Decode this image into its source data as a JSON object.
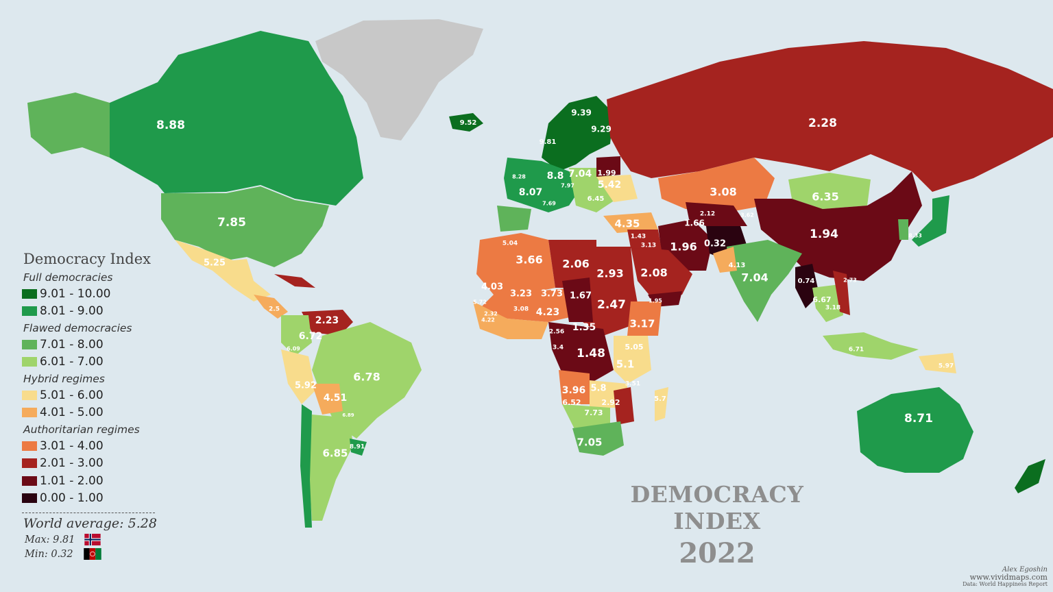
{
  "map": {
    "title_line1": "DEMOCRACY INDEX",
    "title_line2": "2022"
  },
  "legend": {
    "title": "Democracy Index",
    "groups": [
      {
        "name": "Full democracies",
        "bins": [
          {
            "range": "9.01 - 10.00",
            "color": "#0b6e1f"
          },
          {
            "range": "8.01 - 9.00",
            "color": "#1f9a4b"
          }
        ]
      },
      {
        "name": "Flawed democracies",
        "bins": [
          {
            "range": "7.01 - 8.00",
            "color": "#5fb35a"
          },
          {
            "range": "6.01 - 7.00",
            "color": "#9fd46b"
          }
        ]
      },
      {
        "name": "Hybrid regimes",
        "bins": [
          {
            "range": "5.01 - 6.00",
            "color": "#f8dc8c"
          },
          {
            "range": "4.01 - 5.00",
            "color": "#f5ab5c"
          }
        ]
      },
      {
        "name": "Authoritarian regimes",
        "bins": [
          {
            "range": "3.01 - 4.00",
            "color": "#ec7a43"
          },
          {
            "range": "2.01 - 3.00",
            "color": "#a5231f"
          },
          {
            "range": "1.01 - 2.00",
            "color": "#6b0a16"
          },
          {
            "range": "0.00 - 1.00",
            "color": "#2a0310"
          }
        ]
      }
    ],
    "divider": "----------------------------------",
    "world_average": "World average: 5.28",
    "max_label": "Max: 9.81",
    "min_label": "Min: 0.32",
    "max_flag_icon": "norway-flag-icon",
    "min_flag_icon": "afghanistan-flag-icon"
  },
  "credits": {
    "author": "Alex Egoshin",
    "site": "www.vividmaps.com",
    "source": "Data: World Happiness Report"
  },
  "country_labels": [
    {
      "text": "2.28"
    },
    {
      "text": "8.88"
    },
    {
      "text": "7.85"
    },
    {
      "text": "9.52"
    },
    {
      "text": "9.39"
    },
    {
      "text": "9.29"
    },
    {
      "text": "9.81"
    },
    {
      "text": "8.8"
    },
    {
      "text": "8.07"
    },
    {
      "text": "7.04"
    },
    {
      "text": "5.42"
    },
    {
      "text": "1.99"
    },
    {
      "text": "3.08"
    },
    {
      "text": "6.35"
    },
    {
      "text": "4.35"
    },
    {
      "text": "1.66"
    },
    {
      "text": "1.96"
    },
    {
      "text": "0.32"
    },
    {
      "text": "1.94"
    },
    {
      "text": "5.25"
    },
    {
      "text": "3.66"
    },
    {
      "text": "2.06"
    },
    {
      "text": "2.93"
    },
    {
      "text": "2.08"
    },
    {
      "text": "7.04"
    },
    {
      "text": "4.03"
    },
    {
      "text": "3.23"
    },
    {
      "text": "3.73"
    },
    {
      "text": "1.67"
    },
    {
      "text": "2.47"
    },
    {
      "text": "4.23"
    },
    {
      "text": "3.17"
    },
    {
      "text": "1.35"
    },
    {
      "text": "1.48"
    },
    {
      "text": "5.1"
    },
    {
      "text": "3.96"
    },
    {
      "text": "5.8"
    },
    {
      "text": "7.05"
    },
    {
      "text": "2.23"
    },
    {
      "text": "6.72"
    },
    {
      "text": "6.78"
    },
    {
      "text": "5.92"
    },
    {
      "text": "4.51"
    },
    {
      "text": "6.85"
    },
    {
      "text": "8.71"
    },
    {
      "text": "0.74"
    },
    {
      "text": "6.67"
    },
    {
      "text": "6.71"
    },
    {
      "text": "4.13"
    },
    {
      "text": "2.92"
    },
    {
      "text": "7.73"
    },
    {
      "text": "6.52"
    },
    {
      "text": "5.05"
    },
    {
      "text": "3.51"
    },
    {
      "text": "5.7"
    },
    {
      "text": "8.91"
    },
    {
      "text": "5.97"
    },
    {
      "text": "1.43"
    },
    {
      "text": "3.13"
    },
    {
      "text": "1.95"
    },
    {
      "text": "2.12"
    },
    {
      "text": "3.62"
    },
    {
      "text": "2.56"
    },
    {
      "text": "3.4"
    },
    {
      "text": "2.32"
    },
    {
      "text": "4.22"
    },
    {
      "text": "3.08"
    },
    {
      "text": "5.04"
    },
    {
      "text": "5.72"
    },
    {
      "text": "6.45"
    },
    {
      "text": "3.18"
    },
    {
      "text": "2.73"
    },
    {
      "text": "8.28"
    },
    {
      "text": "7.97"
    },
    {
      "text": "7.69"
    },
    {
      "text": "6.89"
    },
    {
      "text": "6.09"
    },
    {
      "text": "8.33"
    },
    {
      "text": "2.5"
    }
  ]
}
